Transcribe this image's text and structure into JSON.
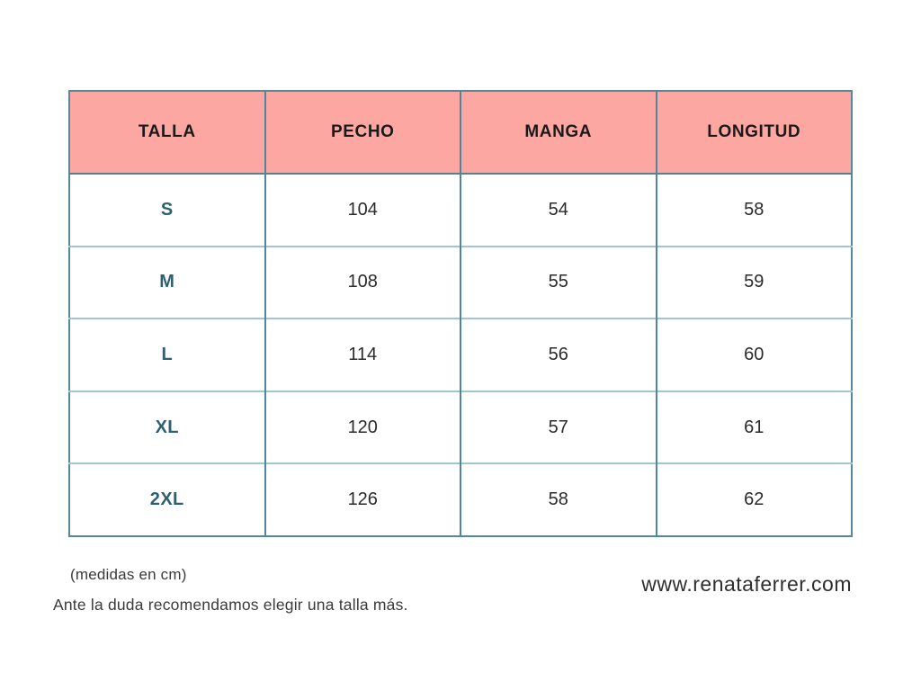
{
  "chart_data": {
    "type": "table",
    "columns": [
      "TALLA",
      "PECHO",
      "MANGA",
      "LONGITUD"
    ],
    "rows": [
      [
        "S",
        "104",
        "54",
        "58"
      ],
      [
        "M",
        "108",
        "55",
        "59"
      ],
      [
        "L",
        "114",
        "56",
        "60"
      ],
      [
        "XL",
        "120",
        "57",
        "61"
      ],
      [
        "2XL",
        "126",
        "58",
        "62"
      ]
    ],
    "units_note": "(medidas en cm)"
  },
  "footer": {
    "units_note": "(medidas en cm)",
    "advice": "Ante la duda recomendamos elegir una talla más.",
    "website": "www.renataferrer.com"
  },
  "colors": {
    "header_bg": "#FCA7A2",
    "header_text": "#1A1A1A",
    "size_text": "#2D6073",
    "value_text": "#2B2B2B",
    "border_outer": "#56879B",
    "border_vertical": "#4D87A0",
    "border_horizontal": "#A0C6D0",
    "header_sep": "#5A7E8C",
    "note_text": "#3A3A3A"
  }
}
